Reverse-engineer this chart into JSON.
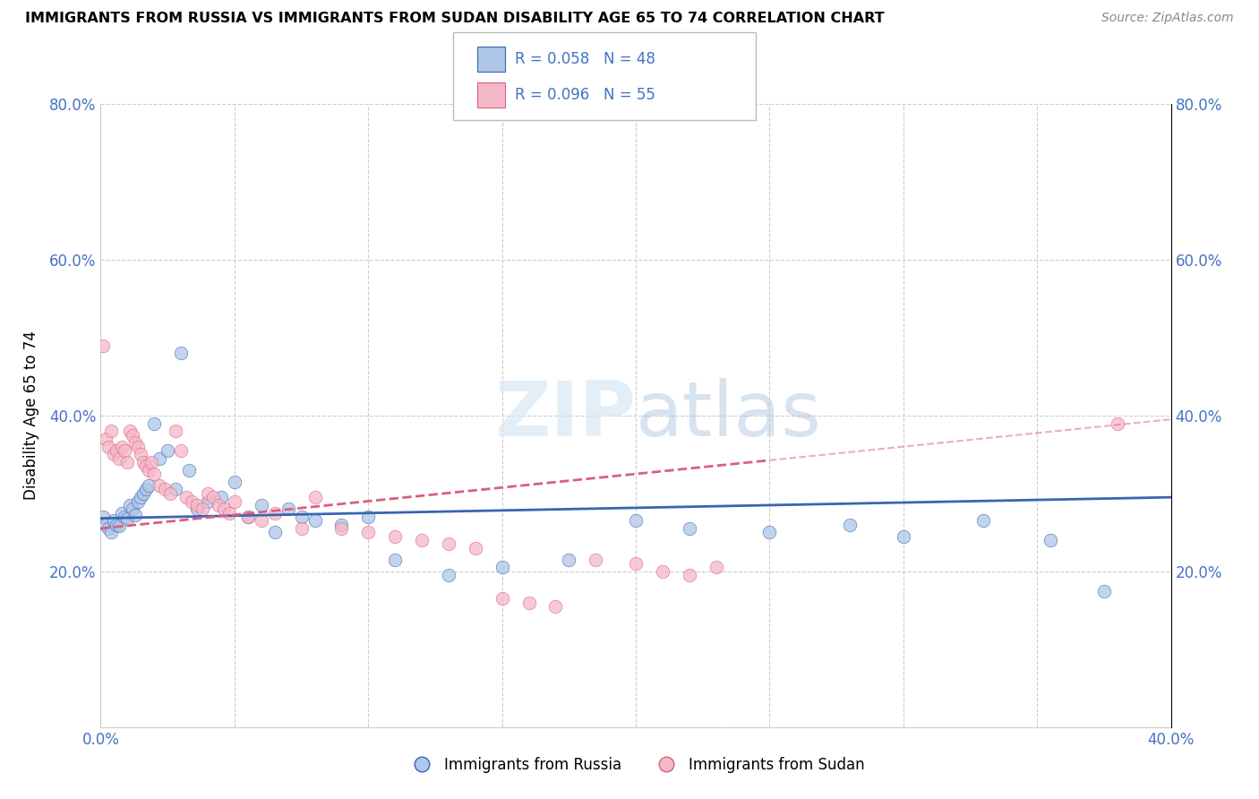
{
  "title": "IMMIGRANTS FROM RUSSIA VS IMMIGRANTS FROM SUDAN DISABILITY AGE 65 TO 74 CORRELATION CHART",
  "source": "Source: ZipAtlas.com",
  "ylabel": "Disability Age 65 to 74",
  "xlim": [
    0.0,
    0.4
  ],
  "ylim": [
    0.0,
    0.8
  ],
  "russia_R": 0.058,
  "russia_N": 48,
  "sudan_R": 0.096,
  "sudan_N": 55,
  "russia_color": "#aec6e8",
  "sudan_color": "#f4b8c8",
  "russia_line_color": "#3a65b0",
  "sudan_line_color": "#d95f7f",
  "watermark_zip": "ZIP",
  "watermark_atlas": "atlas",
  "legend_russia_label": "Immigrants from Russia",
  "legend_sudan_label": "Immigrants from Sudan",
  "russia_x": [
    0.001,
    0.002,
    0.003,
    0.004,
    0.005,
    0.006,
    0.007,
    0.008,
    0.009,
    0.01,
    0.011,
    0.012,
    0.013,
    0.014,
    0.015,
    0.016,
    0.017,
    0.018,
    0.02,
    0.022,
    0.025,
    0.028,
    0.03,
    0.033,
    0.036,
    0.04,
    0.045,
    0.05,
    0.055,
    0.06,
    0.065,
    0.07,
    0.075,
    0.08,
    0.09,
    0.1,
    0.11,
    0.13,
    0.15,
    0.175,
    0.2,
    0.22,
    0.25,
    0.28,
    0.3,
    0.33,
    0.355,
    0.375
  ],
  "russia_y": [
    0.27,
    0.26,
    0.255,
    0.25,
    0.265,
    0.26,
    0.258,
    0.275,
    0.27,
    0.268,
    0.285,
    0.28,
    0.272,
    0.29,
    0.295,
    0.3,
    0.305,
    0.31,
    0.39,
    0.345,
    0.355,
    0.305,
    0.48,
    0.33,
    0.28,
    0.29,
    0.295,
    0.315,
    0.27,
    0.285,
    0.25,
    0.28,
    0.27,
    0.265,
    0.26,
    0.27,
    0.215,
    0.195,
    0.205,
    0.215,
    0.265,
    0.255,
    0.25,
    0.26,
    0.245,
    0.265,
    0.24,
    0.175
  ],
  "sudan_x": [
    0.001,
    0.002,
    0.003,
    0.004,
    0.005,
    0.006,
    0.007,
    0.008,
    0.009,
    0.01,
    0.011,
    0.012,
    0.013,
    0.014,
    0.015,
    0.016,
    0.017,
    0.018,
    0.019,
    0.02,
    0.022,
    0.024,
    0.026,
    0.028,
    0.03,
    0.032,
    0.034,
    0.036,
    0.038,
    0.04,
    0.042,
    0.044,
    0.046,
    0.048,
    0.05,
    0.055,
    0.06,
    0.065,
    0.075,
    0.08,
    0.09,
    0.1,
    0.11,
    0.12,
    0.13,
    0.14,
    0.15,
    0.16,
    0.17,
    0.185,
    0.2,
    0.21,
    0.22,
    0.23,
    0.38
  ],
  "sudan_y": [
    0.49,
    0.37,
    0.36,
    0.38,
    0.35,
    0.355,
    0.345,
    0.36,
    0.355,
    0.34,
    0.38,
    0.375,
    0.365,
    0.36,
    0.35,
    0.34,
    0.335,
    0.33,
    0.34,
    0.325,
    0.31,
    0.305,
    0.3,
    0.38,
    0.355,
    0.295,
    0.29,
    0.285,
    0.28,
    0.3,
    0.295,
    0.285,
    0.28,
    0.275,
    0.29,
    0.27,
    0.265,
    0.275,
    0.255,
    0.295,
    0.255,
    0.25,
    0.245,
    0.24,
    0.235,
    0.23,
    0.165,
    0.16,
    0.155,
    0.215,
    0.21,
    0.2,
    0.195,
    0.205,
    0.39
  ],
  "russia_line_x0": 0.0,
  "russia_line_y0": 0.268,
  "russia_line_x1": 0.4,
  "russia_line_y1": 0.295,
  "sudan_line_x0": 0.0,
  "sudan_line_y0": 0.255,
  "sudan_line_x1": 0.4,
  "sudan_line_y1": 0.395
}
